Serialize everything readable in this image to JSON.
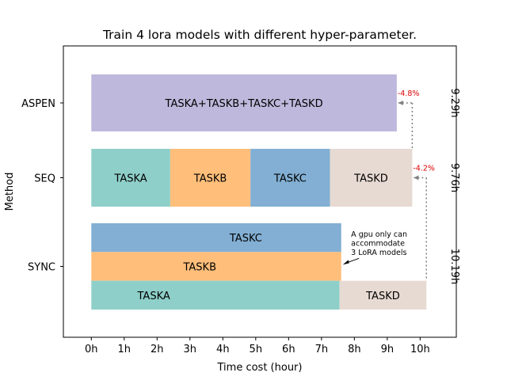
{
  "chart_data": {
    "type": "bar",
    "orientation": "horizontal",
    "stacked": true,
    "title": "Train 4 lora models with different hyper-parameter.",
    "xlabel": "Time cost (hour)",
    "ylabel": "Method",
    "xlim": [
      -0.85,
      11.1
    ],
    "x_ticks": [
      0,
      1,
      2,
      3,
      4,
      5,
      6,
      7,
      8,
      9,
      10
    ],
    "x_tick_labels": [
      "0h",
      "1h",
      "2h",
      "3h",
      "4h",
      "5h",
      "6h",
      "7h",
      "8h",
      "9h",
      "10h"
    ],
    "grid": false,
    "legend": false,
    "colors": {
      "TASKA": "#8ecfc9",
      "TASKB": "#ffbe7a",
      "TASKC": "#82afd3",
      "TASKD": "#e7dad2",
      "ASPEN": "#beb8dc",
      "annotation_red": "#dd0000",
      "connector_gray": "#808080"
    },
    "methods": [
      {
        "name": "ASPEN",
        "total_label": "9.29h",
        "segments": [
          {
            "label": "TASKA+TASKB+TASKC+TASKD",
            "start": 0,
            "duration": 9.29,
            "color_key": "ASPEN",
            "row": 0
          }
        ]
      },
      {
        "name": "SEQ",
        "total_label": "9.76h",
        "segments": [
          {
            "label": "TASKA",
            "start": 0,
            "duration": 2.4,
            "color_key": "TASKA",
            "row": 0
          },
          {
            "label": "TASKB",
            "start": 2.4,
            "duration": 2.44,
            "color_key": "TASKB",
            "row": 0
          },
          {
            "label": "TASKC",
            "start": 4.84,
            "duration": 2.42,
            "color_key": "TASKC",
            "row": 0
          },
          {
            "label": "TASKD",
            "start": 7.26,
            "duration": 2.5,
            "color_key": "TASKD",
            "row": 0
          }
        ]
      },
      {
        "name": "SYNC",
        "total_label": "10.19h",
        "segments": [
          {
            "label": "TASKC",
            "start": 0,
            "duration": 7.6,
            "color_key": "TASKC",
            "row": 2
          },
          {
            "label": "TASKB",
            "start": 0,
            "duration": 7.6,
            "color_key": "TASKB",
            "row": 1
          },
          {
            "label": "TASKA",
            "start": 0,
            "duration": 7.55,
            "color_key": "TASKA",
            "row": 0
          },
          {
            "label": "TASKD",
            "start": 7.55,
            "duration": 2.64,
            "color_key": "TASKD",
            "row": 0
          }
        ]
      }
    ],
    "annotations": [
      {
        "text": "-4.8%",
        "from_x": 9.29,
        "to_x": 9.76,
        "method": "ASPEN"
      },
      {
        "text": "-4.2%",
        "from_x": 9.76,
        "to_x": 10.19,
        "method": "SEQ"
      },
      {
        "text": "A gpu only can\naccommodate\n3 LoRA models",
        "points_to_x": 7.6,
        "method": "SYNC"
      }
    ]
  }
}
